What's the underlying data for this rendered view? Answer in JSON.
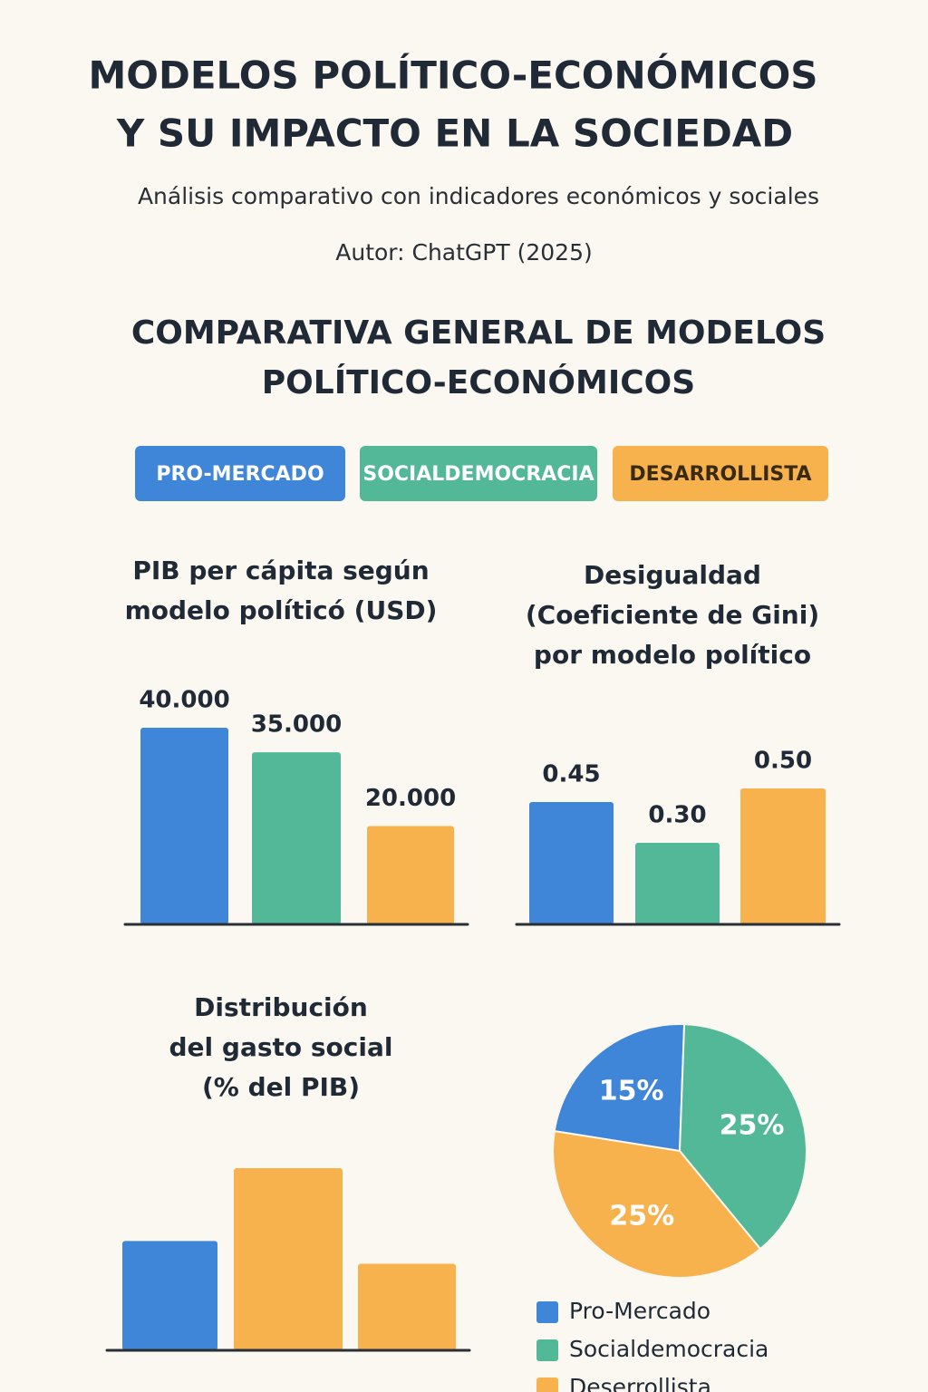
{
  "header": {
    "title": [
      "MODELOS POLÍTICO-ECONÓMICOS",
      "Y SU IMPACTO EN LA SOCIEDAD"
    ],
    "subtitle": "Análisis comparativo con indicadores económicos y sociales",
    "author": "Autor: ChatGPT (2025)"
  },
  "section": {
    "title": [
      "COMPARATIVA GENERAL DE MODELOS",
      "POLÍTICO-ECONÓMICOS"
    ],
    "tags": [
      {
        "label": "PRO-MERCADO",
        "color": "#3f86d8"
      },
      {
        "label": "SOCIALDEMOCRACIA",
        "color": "#52b898"
      },
      {
        "label": "DESARROLLISTA",
        "color": "#f7b24e"
      }
    ]
  },
  "chart_data": [
    {
      "type": "bar",
      "title": [
        "PIB per cápita según",
        "modelo políticó (USD)"
      ],
      "categories": [
        null,
        null,
        null
      ],
      "values": [
        40000,
        35000,
        20000
      ],
      "value_labels": [
        "40.000",
        "35.000",
        "20.000"
      ],
      "colors": [
        "#3f86d8",
        "#52b898",
        "#f7b24e"
      ]
    },
    {
      "type": "bar",
      "title": [
        "Desigualdad",
        "(Coeficiente de Gini)",
        "por modelo político"
      ],
      "categories": [
        null,
        null,
        null
      ],
      "values": [
        0.45,
        0.3,
        0.5
      ],
      "value_labels": [
        "0.45",
        "0.30",
        "0.50"
      ],
      "colors": [
        "#3f86d8",
        "#52b898",
        "#f7b24e"
      ]
    },
    {
      "type": "bar",
      "title": [
        "Distribución",
        "del gasto social",
        "(% del PIB)"
      ],
      "categories": [
        null,
        null,
        null
      ],
      "values": [
        12,
        20,
        9.5
      ],
      "colors": [
        "#3f86d8",
        "#f7b24e",
        "#f7b24e"
      ]
    },
    {
      "type": "pie",
      "categories": [
        "Pro-Mercado",
        "Socialdemocracia",
        "Deserrollista"
      ],
      "values": [
        15,
        25,
        25
      ],
      "value_labels": [
        "15%",
        "25%",
        "25%"
      ],
      "colors": [
        "#3f86d8",
        "#52b898",
        "#f7b24e"
      ]
    }
  ]
}
